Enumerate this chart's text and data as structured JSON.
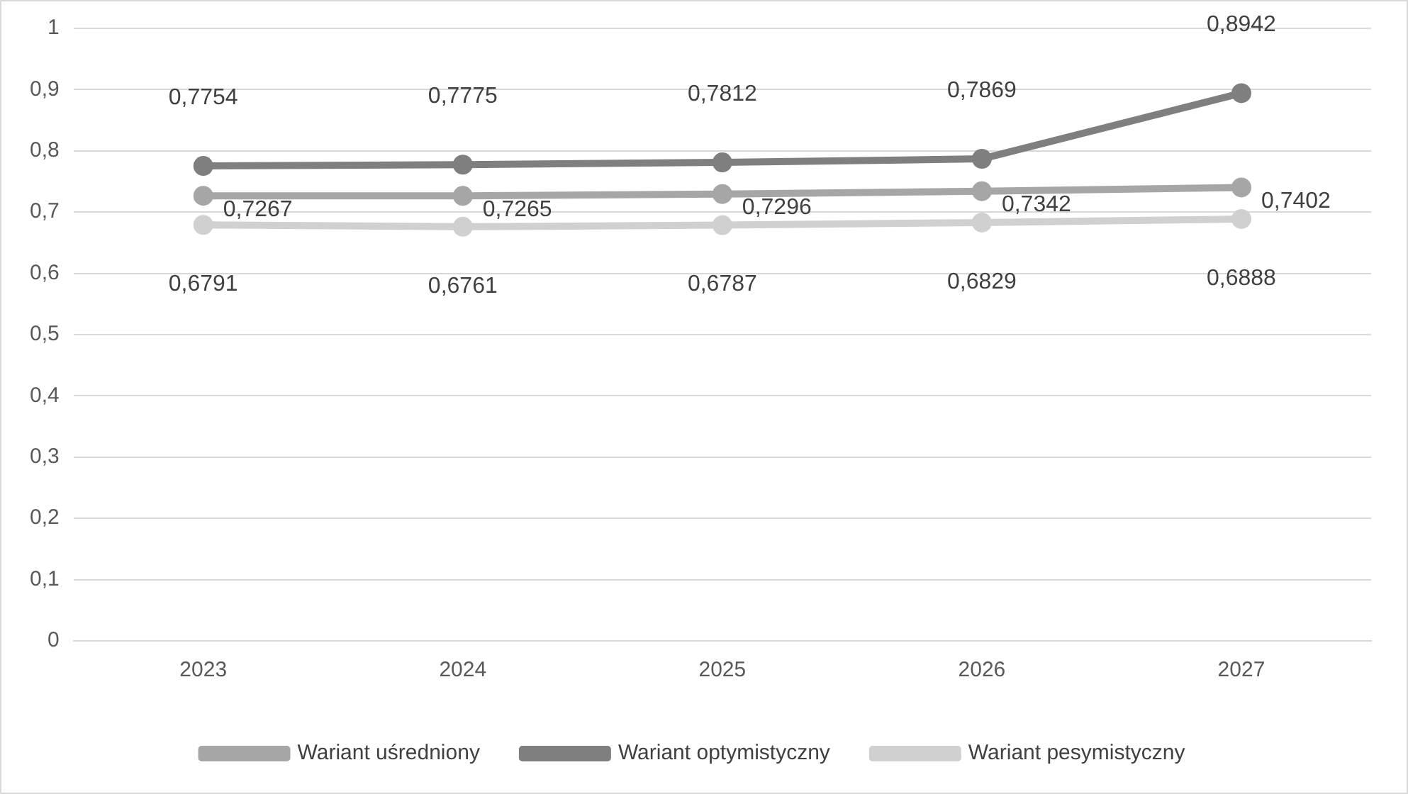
{
  "chart_data": {
    "type": "line",
    "categories": [
      "2023",
      "2024",
      "2025",
      "2026",
      "2027"
    ],
    "series": [
      {
        "name": "Wariant uśredniony",
        "color": "#a6a6a6",
        "values": [
          0.7267,
          0.7265,
          0.7296,
          0.7342,
          0.7402
        ],
        "value_labels": [
          "0,7267",
          "0,7265",
          "0,7296",
          "0,7342",
          "0,7402"
        ]
      },
      {
        "name": "Wariant optymistyczny",
        "color": "#7f7f7f",
        "values": [
          0.7754,
          0.7775,
          0.7812,
          0.7869,
          0.8942
        ],
        "value_labels": [
          "0,7754",
          "0,7775",
          "0,7812",
          "0,7869",
          "0,8942"
        ]
      },
      {
        "name": "Wariant pesymistyczny",
        "color": "#d0d0d0",
        "values": [
          0.6791,
          0.6761,
          0.6787,
          0.6829,
          0.6888
        ],
        "value_labels": [
          "0,6791",
          "0,6761",
          "0,6787",
          "0,6829",
          "0,6888"
        ]
      }
    ],
    "ylim": [
      0,
      1
    ],
    "yticks": [
      {
        "value": 0,
        "label": "0"
      },
      {
        "value": 0.1,
        "label": "0,1"
      },
      {
        "value": 0.2,
        "label": "0,2"
      },
      {
        "value": 0.3,
        "label": "0,3"
      },
      {
        "value": 0.4,
        "label": "0,4"
      },
      {
        "value": 0.5,
        "label": "0,5"
      },
      {
        "value": 0.6,
        "label": "0,6"
      },
      {
        "value": 0.7,
        "label": "0,7"
      },
      {
        "value": 0.8,
        "label": "0,8"
      },
      {
        "value": 0.9,
        "label": "0,9"
      },
      {
        "value": 1,
        "label": "1"
      }
    ],
    "grid": "y",
    "legend": "bottom",
    "marker": "circle",
    "line_style": "solid"
  }
}
